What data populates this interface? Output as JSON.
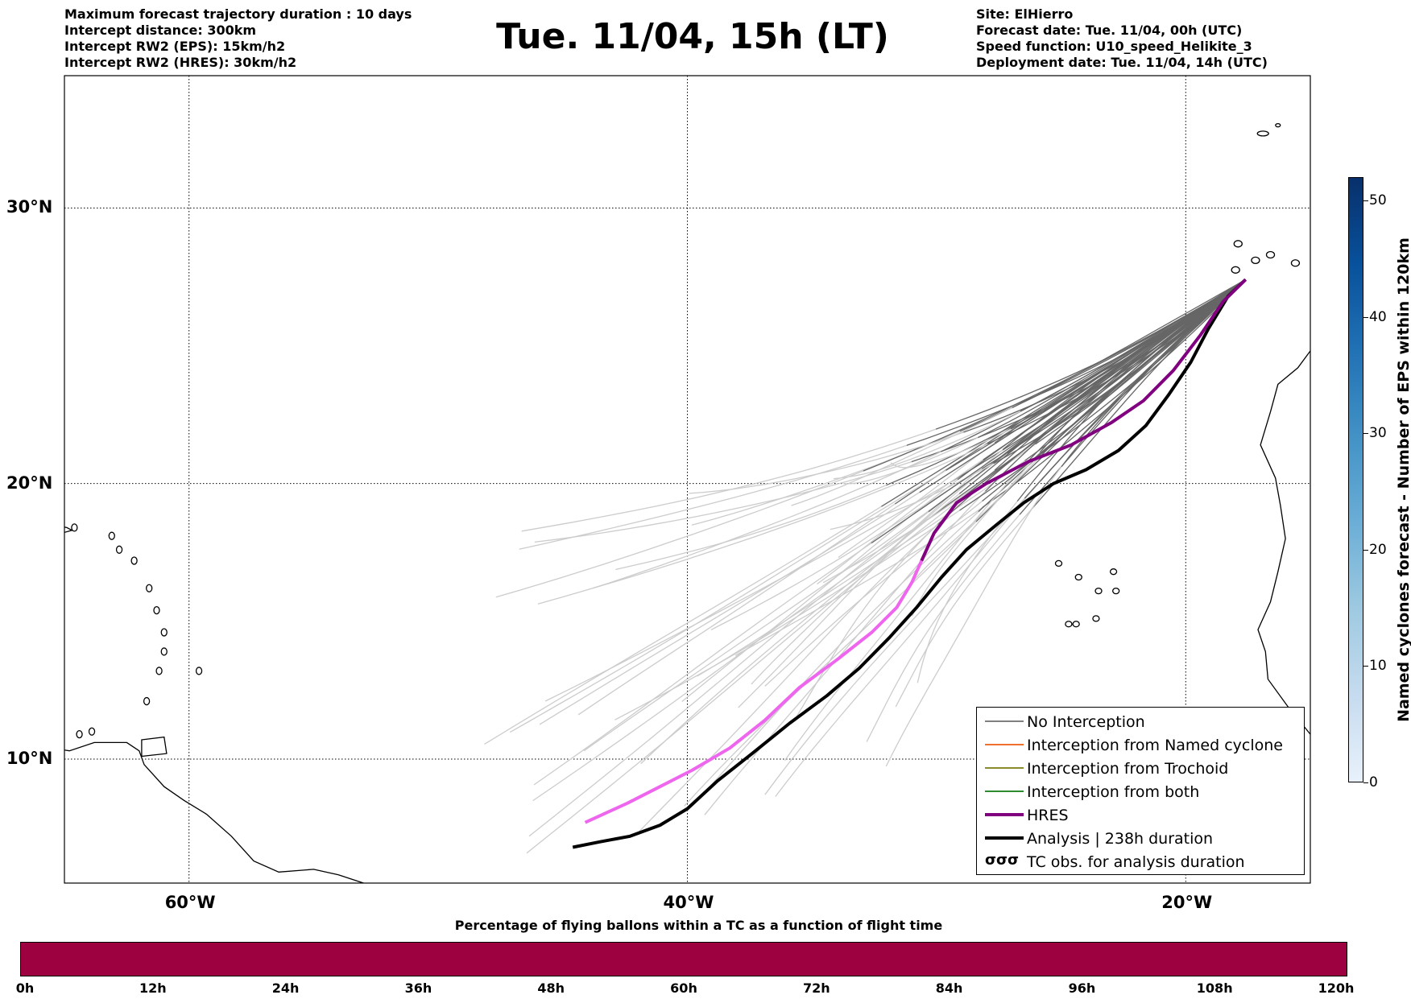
{
  "info_left": [
    "Maximum forecast trajectory duration : 10 days",
    "Intercept distance: 300km",
    "Intercept RW2 (EPS):  15km/h2",
    "Intercept RW2 (HRES): 30km/h2"
  ],
  "title": "Tue. 11/04, 15h (LT)",
  "info_right": [
    "Site: ElHierro",
    "Forecast date: Tue. 11/04, 00h (UTC)",
    "Speed function: U10_speed_Helikite_3",
    "Deployment date: Tue. 11/04, 14h (UTC)"
  ],
  "map": {
    "lon_range": [
      -65,
      -15
    ],
    "lat_range": [
      5.5,
      34.8
    ],
    "lon_ticks": [
      {
        "value": -60,
        "label": "60°W"
      },
      {
        "value": -40,
        "label": "40°W"
      },
      {
        "value": -20,
        "label": "20°W"
      }
    ],
    "lat_ticks": [
      {
        "value": 30,
        "label": "30°N"
      },
      {
        "value": 20,
        "label": "20°N"
      },
      {
        "value": 10,
        "label": "10°N"
      }
    ],
    "grid": "dotted",
    "coastline_color": "#000000"
  },
  "trajectories": {
    "hres": {
      "color": "#800080",
      "late_color": "#ee66ee",
      "points": [
        [
          -17.6,
          27.4
        ],
        [
          -18.5,
          26.6
        ],
        [
          -19.4,
          25.4
        ],
        [
          -20.5,
          24.1
        ],
        [
          -21.7,
          23.0
        ],
        [
          -23.0,
          22.2
        ],
        [
          -24.6,
          21.4
        ],
        [
          -26.3,
          20.8
        ],
        [
          -28.0,
          20.0
        ],
        [
          -29.2,
          19.3
        ],
        [
          -30.1,
          18.2
        ],
        [
          -30.6,
          17.2
        ],
        [
          -31.0,
          16.4
        ],
        [
          -31.6,
          15.5
        ],
        [
          -32.6,
          14.6
        ],
        [
          -34.0,
          13.6
        ],
        [
          -35.5,
          12.6
        ],
        [
          -36.9,
          11.4
        ],
        [
          -38.3,
          10.4
        ],
        [
          -39.8,
          9.6
        ],
        [
          -41.1,
          9.0
        ],
        [
          -42.4,
          8.4
        ],
        [
          -44.1,
          7.7
        ]
      ]
    },
    "analysis": {
      "color": "#000000",
      "label": "238h duration",
      "points": [
        [
          -17.6,
          27.4
        ],
        [
          -18.3,
          26.8
        ],
        [
          -19.1,
          25.6
        ],
        [
          -19.8,
          24.4
        ],
        [
          -20.7,
          23.2
        ],
        [
          -21.6,
          22.1
        ],
        [
          -22.7,
          21.2
        ],
        [
          -24.0,
          20.5
        ],
        [
          -25.3,
          20.0
        ],
        [
          -26.5,
          19.3
        ],
        [
          -27.6,
          18.5
        ],
        [
          -28.8,
          17.6
        ],
        [
          -29.8,
          16.6
        ],
        [
          -30.8,
          15.5
        ],
        [
          -31.9,
          14.4
        ],
        [
          -33.1,
          13.3
        ],
        [
          -34.4,
          12.3
        ],
        [
          -35.9,
          11.3
        ],
        [
          -37.4,
          10.2
        ],
        [
          -38.8,
          9.2
        ],
        [
          -40.0,
          8.2
        ],
        [
          -41.1,
          7.6
        ],
        [
          -42.3,
          7.2
        ],
        [
          -43.5,
          7.0
        ],
        [
          -44.6,
          6.8
        ]
      ]
    },
    "eps_colors": {
      "no_interception_early": "#666666",
      "no_interception_late": "#cccccc"
    }
  },
  "legend": {
    "items": [
      {
        "label": "No Interception",
        "color": "#808080",
        "width": 1.5
      },
      {
        "label": "Interception from Named cyclone",
        "color": "#f07030",
        "width": 1.5
      },
      {
        "label": "Interception from Trochoid",
        "color": "#8b8b2e",
        "width": 1.5
      },
      {
        "label": "Interception from both",
        "color": "#2e8b2e",
        "width": 1.5
      },
      {
        "label": "HRES",
        "color": "#800080",
        "width": 4
      },
      {
        "label": "Analysis | 238h duration",
        "color": "#000000",
        "width": 4
      },
      {
        "label": "TC obs. for analysis duration",
        "color": "#000000",
        "symbol": "tc"
      }
    ]
  },
  "colorbar_right": {
    "label": "Named cyclones forecast - Number of EPS within 120km",
    "range": [
      0,
      52
    ],
    "ticks": [
      0,
      10,
      20,
      30,
      40,
      50
    ]
  },
  "colorbar_bottom": {
    "title": "Percentage of flying ballons within a TC as a function of flight time",
    "color": "#9e0140",
    "ticks": [
      "0h",
      "12h",
      "24h",
      "36h",
      "48h",
      "60h",
      "72h",
      "84h",
      "96h",
      "108h",
      "120h"
    ]
  }
}
